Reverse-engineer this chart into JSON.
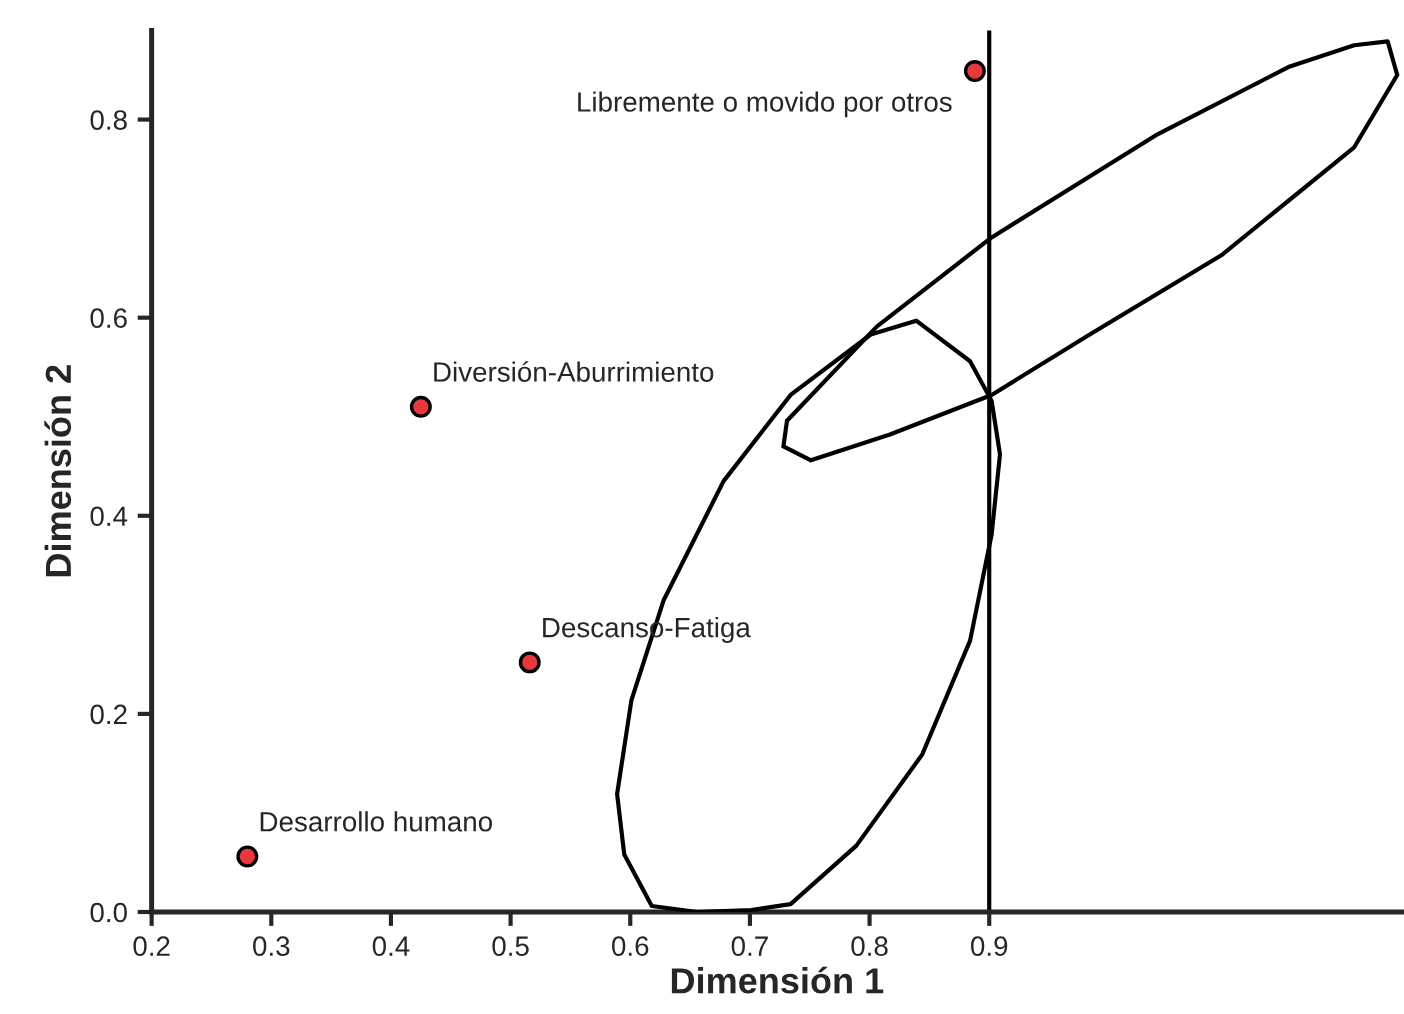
{
  "chart_data": {
    "type": "scatter",
    "xlabel": "Dimensión 1",
    "ylabel": "Dimensión 2",
    "xlim": [
      0.2,
      1.245
    ],
    "ylim": [
      0,
      0.89
    ],
    "xticks": [
      0.2,
      0.3,
      0.4,
      0.5,
      0.6,
      0.7,
      0.8,
      0.9
    ],
    "yticks": [
      {
        "value": 0,
        "label": "0.0"
      },
      0.2,
      0.4,
      0.6,
      0.8
    ],
    "grid": false,
    "legend": false,
    "marker": "circle",
    "ref_lines": [
      {
        "axis": "x",
        "value": 0.9,
        "label": null,
        "color": "#000000"
      }
    ],
    "series": [
      {
        "color": "#e8383d",
        "x": [
          0.28,
          0.425,
          0.516,
          0.888
        ],
        "values": [
          0.056,
          0.51,
          0.252,
          0.849
        ]
      },
      {
        "type": "line",
        "color": "#000000",
        "marker": "none",
        "x": [
          0.589,
          0.601,
          0.628,
          0.678,
          0.734,
          0.801,
          0.839,
          0.884,
          0.902,
          0.909,
          null,
          0.589,
          0.595,
          0.618,
          0.656,
          0.701,
          0.734,
          0.789,
          0.844,
          0.884,
          0.902,
          0.909
        ],
        "values": [
          0.119,
          0.214,
          0.315,
          0.435,
          0.522,
          0.583,
          0.597,
          0.556,
          0.516,
          0.462,
          null,
          0.119,
          0.058,
          0.006,
          0.0,
          0.002,
          0.008,
          0.067,
          0.159,
          0.274,
          0.381,
          0.462
        ]
      },
      {
        "type": "line",
        "color": "#000000",
        "marker": "none",
        "x": [
          0.728,
          0.731,
          0.806,
          0.902,
          1.039,
          1.15,
          1.205,
          1.233,
          1.241,
          null,
          0.728,
          0.751,
          0.817,
          0.902,
          0.984,
          1.094,
          1.205,
          1.241
        ],
        "values": [
          0.47,
          0.496,
          0.591,
          0.681,
          0.784,
          0.853,
          0.875,
          0.879,
          0.845,
          null,
          0.47,
          0.456,
          0.482,
          0.522,
          0.583,
          0.663,
          0.772,
          0.845
        ]
      }
    ],
    "annotations": [
      {
        "text": "Desarrollo humano",
        "x": 0.28,
        "y": 0.056
      },
      {
        "text": "Diversión-Aburrimiento",
        "x": 0.425,
        "y": 0.51
      },
      {
        "text": "Descanso-Fatiga",
        "x": 0.516,
        "y": 0.252
      },
      {
        "text": "Libremente o movido por otros",
        "x": 0.888,
        "y": 0.849
      }
    ]
  }
}
